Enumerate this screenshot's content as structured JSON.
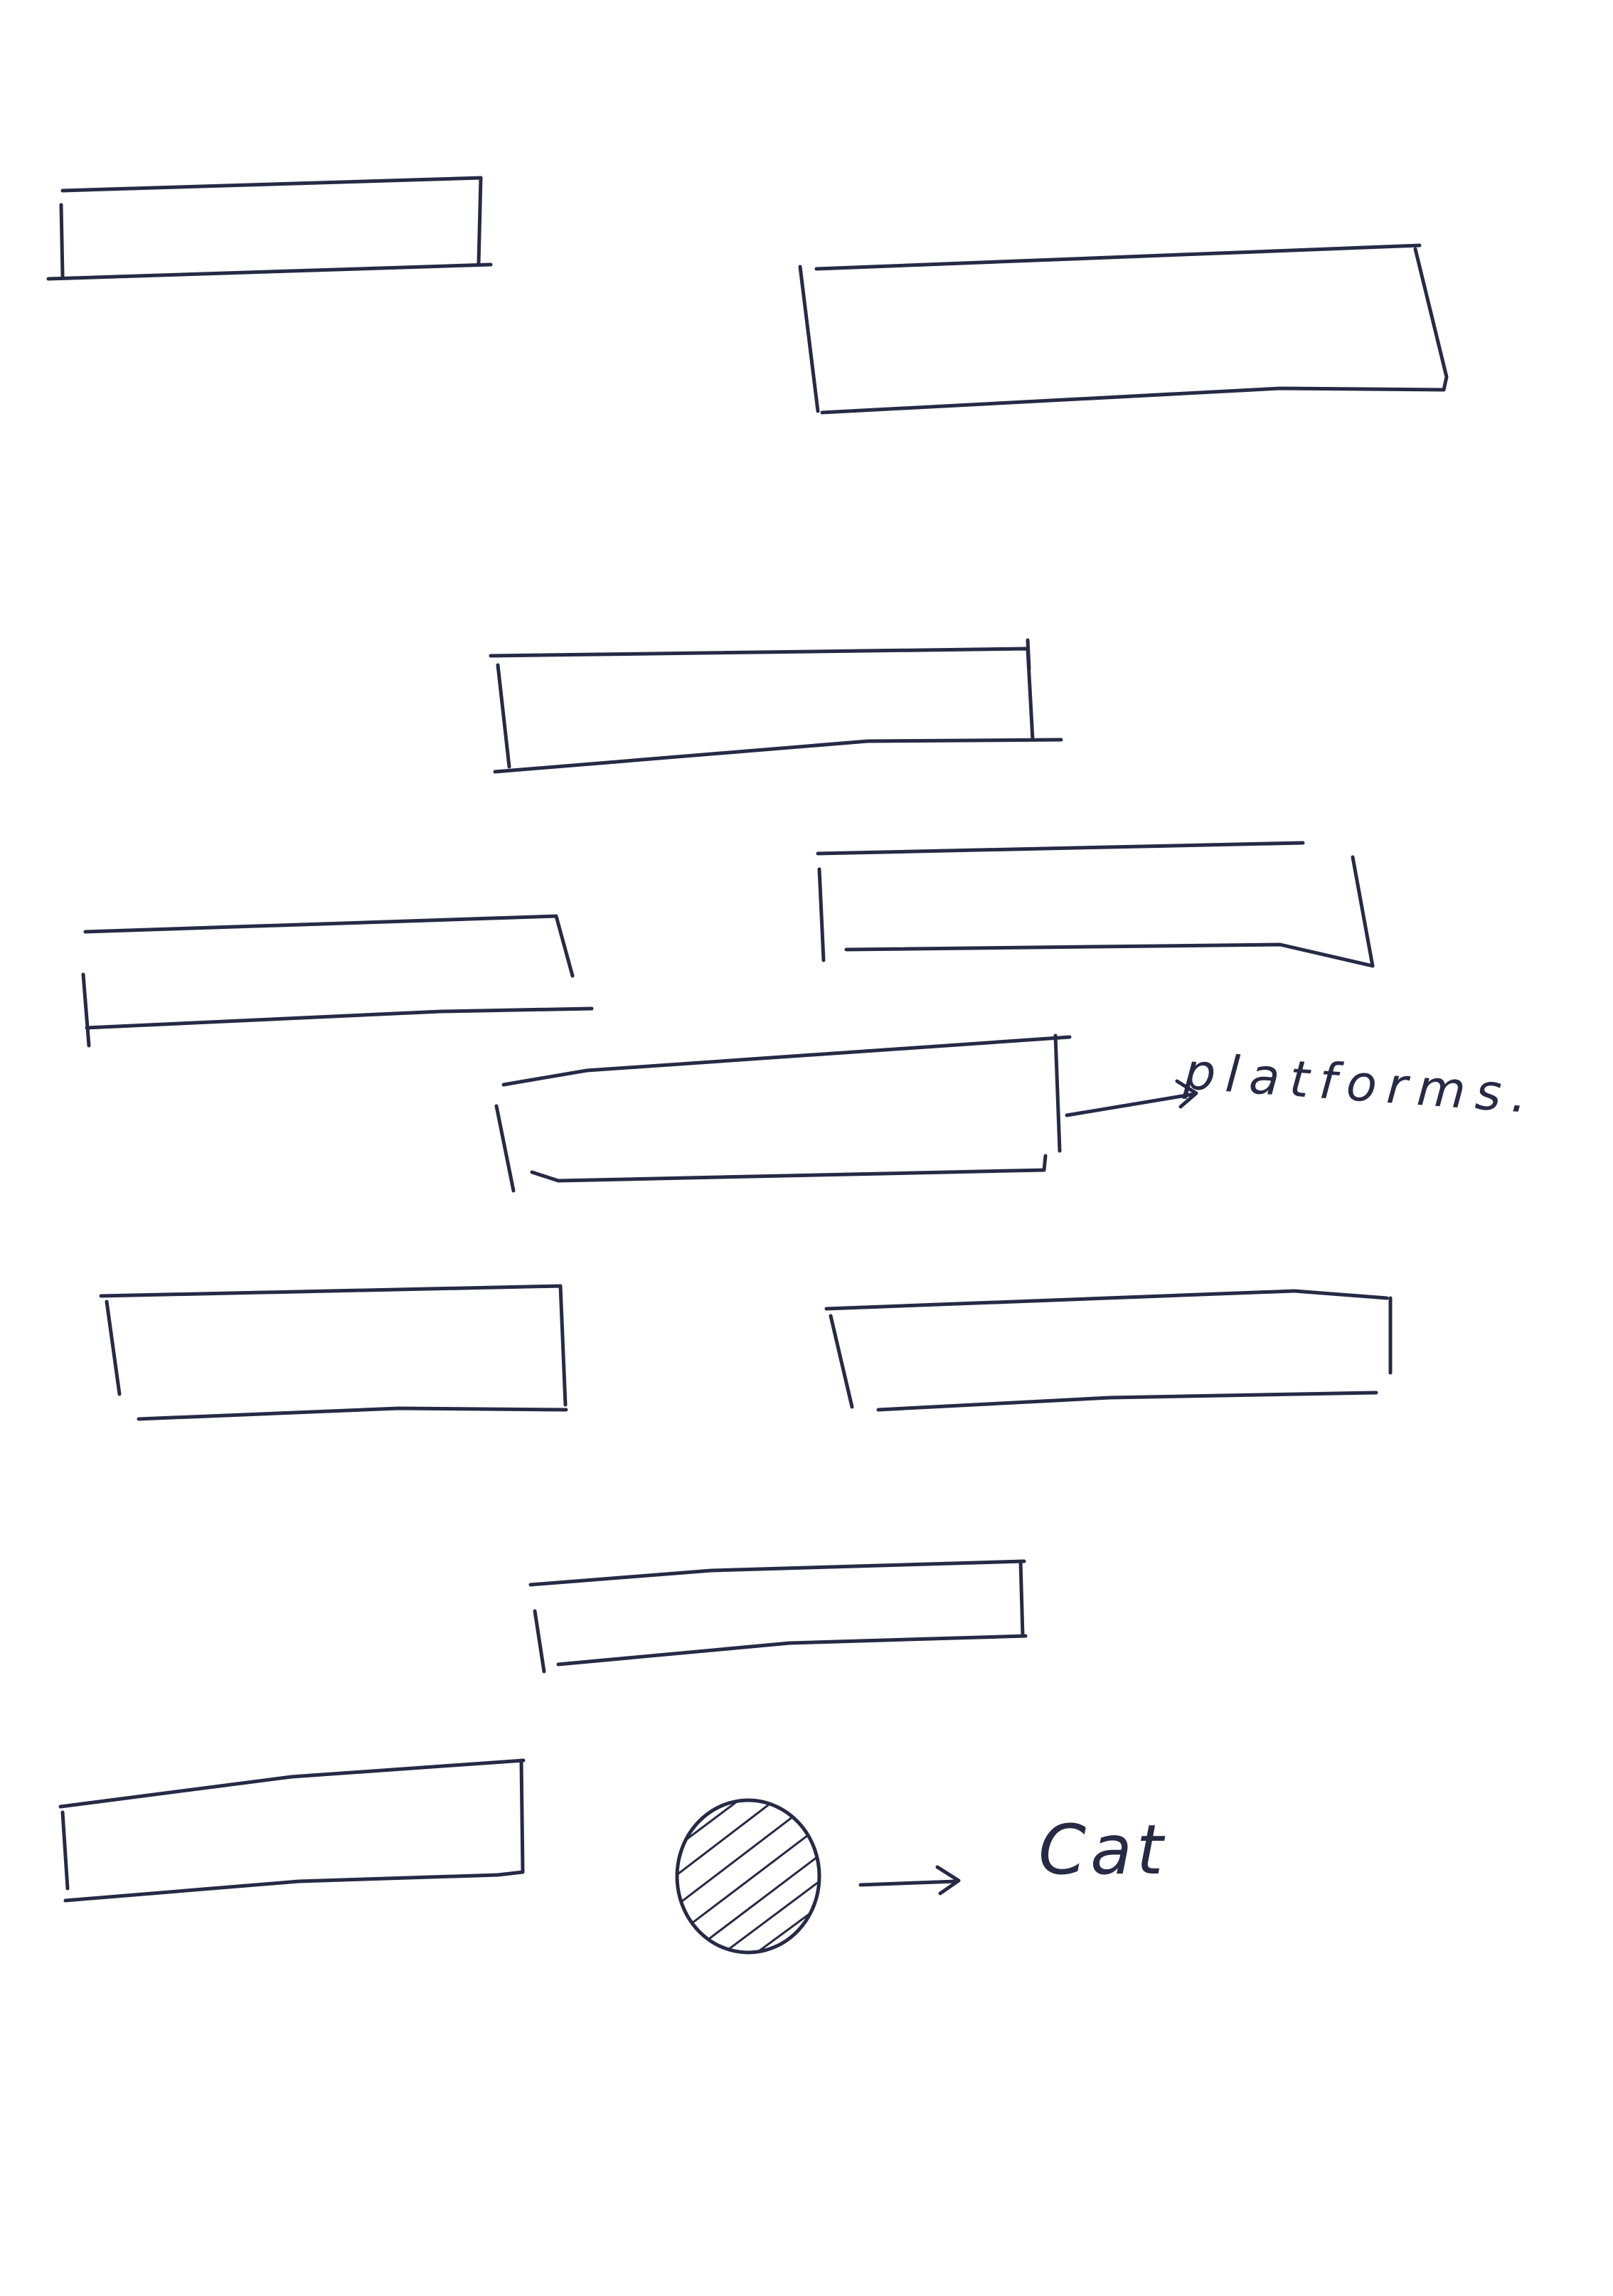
{
  "sketch": {
    "platform_count": 10,
    "annotations": {
      "platforms": "platforms.",
      "cat": "Cat"
    },
    "icons": {
      "cat": "hatched-circle",
      "pointer": "arrow-right"
    },
    "colors": {
      "ink": "#262a45",
      "paper": "#ffffff"
    }
  }
}
